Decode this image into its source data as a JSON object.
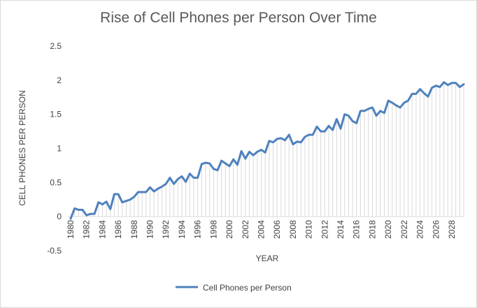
{
  "chart_data": {
    "type": "line",
    "title": "Rise of Cell Phones per Person Over Time",
    "xlabel": "YEAR",
    "ylabel": "CELL PHONES PER PERSON",
    "ylim": [
      -0.5,
      2.5
    ],
    "yticks": [
      "-0.5",
      "0",
      "0.5",
      "1",
      "1.5",
      "2",
      "2.5"
    ],
    "xticks": [
      "1980",
      "1982",
      "1984",
      "1986",
      "1988",
      "1990",
      "1992",
      "1994",
      "1996",
      "1998",
      "2000",
      "2002",
      "2004",
      "2006",
      "2008",
      "2010",
      "2012",
      "2014",
      "2016",
      "2018",
      "2020",
      "2022",
      "2024",
      "2026",
      "2028"
    ],
    "x_start": 1980,
    "x_step": 0.5,
    "legend_position": "bottom",
    "series": [
      {
        "name": "Cell Phones per Person",
        "color": "#4f81bd",
        "values": [
          -0.03,
          0.12,
          0.1,
          0.1,
          0.02,
          0.04,
          0.04,
          0.21,
          0.18,
          0.22,
          0.11,
          0.33,
          0.33,
          0.21,
          0.23,
          0.25,
          0.29,
          0.36,
          0.36,
          0.36,
          0.43,
          0.37,
          0.41,
          0.44,
          0.48,
          0.57,
          0.48,
          0.55,
          0.59,
          0.51,
          0.63,
          0.57,
          0.57,
          0.77,
          0.79,
          0.78,
          0.7,
          0.68,
          0.82,
          0.78,
          0.74,
          0.84,
          0.76,
          0.96,
          0.85,
          0.95,
          0.9,
          0.95,
          0.98,
          0.94,
          1.11,
          1.09,
          1.14,
          1.15,
          1.12,
          1.2,
          1.06,
          1.1,
          1.09,
          1.17,
          1.2,
          1.2,
          1.32,
          1.25,
          1.25,
          1.33,
          1.27,
          1.43,
          1.29,
          1.5,
          1.48,
          1.4,
          1.37,
          1.55,
          1.55,
          1.58,
          1.6,
          1.48,
          1.55,
          1.52,
          1.7,
          1.67,
          1.63,
          1.6,
          1.67,
          1.7,
          1.8,
          1.8,
          1.87,
          1.81,
          1.76,
          1.89,
          1.92,
          1.9,
          1.97,
          1.93,
          1.96,
          1.96,
          1.9,
          1.94
        ]
      }
    ],
    "grid": false
  }
}
